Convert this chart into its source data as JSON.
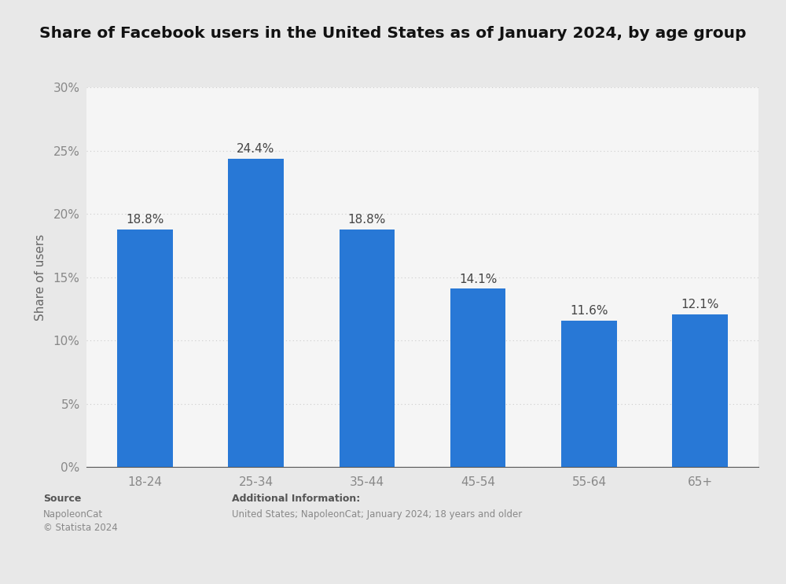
{
  "title": "Share of Facebook users in the United States as of January 2024, by age group",
  "categories": [
    "18-24",
    "25-34",
    "35-44",
    "45-54",
    "55-64",
    "65+"
  ],
  "values": [
    18.8,
    24.4,
    18.8,
    14.1,
    11.6,
    12.1
  ],
  "bar_color": "#2878d6",
  "ylabel": "Share of users",
  "ylim": [
    0,
    30
  ],
  "yticks": [
    0,
    5,
    10,
    15,
    20,
    25,
    30
  ],
  "outer_background": "#e8e8e8",
  "plot_background": "#f5f5f5",
  "title_fontsize": 14.5,
  "label_fontsize": 11,
  "tick_fontsize": 11,
  "annotation_fontsize": 11,
  "source_bold": "Source",
  "source_normal": "NapoleonCat\n© Statista 2024",
  "additional_info_label": "Additional Information:",
  "additional_info_text": "United States; NapoleonCat; January 2024; 18 years and older",
  "grid_color": "#cccccc",
  "tick_color": "#888888",
  "ylabel_color": "#666666",
  "annotation_color": "#444444",
  "footer_text_color": "#888888",
  "footer_bold_color": "#555555"
}
